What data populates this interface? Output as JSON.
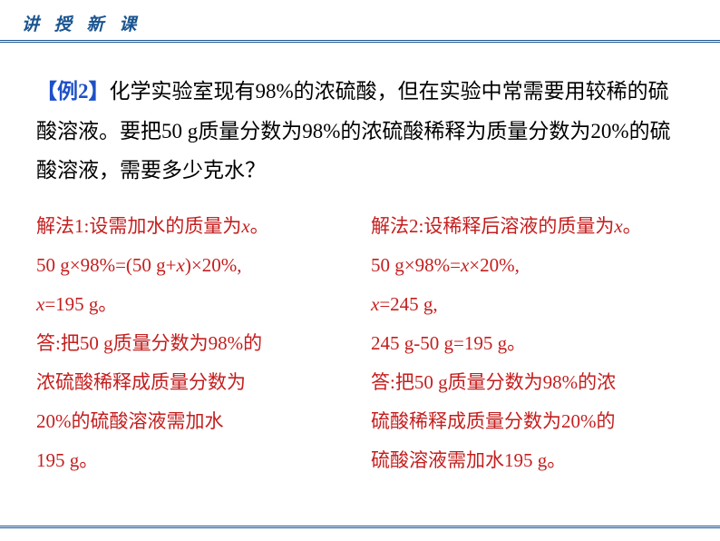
{
  "header": {
    "title": "讲 授 新 课"
  },
  "problem": {
    "example_tag": "【例2】",
    "text": "化学实验室现有98%的浓硫酸，但在实验中常需要用较稀的硫酸溶液。要把50 g质量分数为98%的浓硫酸稀释为质量分数为20%的硫酸溶液，需要多少克水？"
  },
  "solution1": {
    "line1_a": "解法1:设需加水的质量为",
    "line1_var": "x",
    "line1_b": "。",
    "line2_a": "50 g×98%=(50 g+",
    "line2_var": "x",
    "line2_b": ")×20%,",
    "line3_var": "x",
    "line3_a": "=195 g。",
    "line4": "答:把50 g质量分数为98%的",
    "line5": "浓硫酸稀释成质量分数为",
    "line6": "20%的硫酸溶液需加水",
    "line7": "195 g。"
  },
  "solution2": {
    "line1_a": "解法2:设稀释后溶液的质量为",
    "line1_var": "x",
    "line1_b": "。",
    "line2_a": "50 g×98%=",
    "line2_var": "x",
    "line2_b": "×20%,",
    "line3_var": "x",
    "line3_a": "=245 g,",
    "line4": "245 g-50 g=195 g。",
    "line5": "答:把50 g质量分数为98%的浓",
    "line6": "硫酸稀释成质量分数为20%的",
    "line7": "硫酸溶液需加水195 g。"
  },
  "colors": {
    "header_color": "#1a5490",
    "example_tag_color": "#1e50c8",
    "solution_color": "#c41e1e",
    "problem_color": "#000000",
    "background": "#ffffff"
  },
  "typography": {
    "header_fontsize": 19,
    "problem_fontsize": 23,
    "solution_fontsize": 21
  }
}
